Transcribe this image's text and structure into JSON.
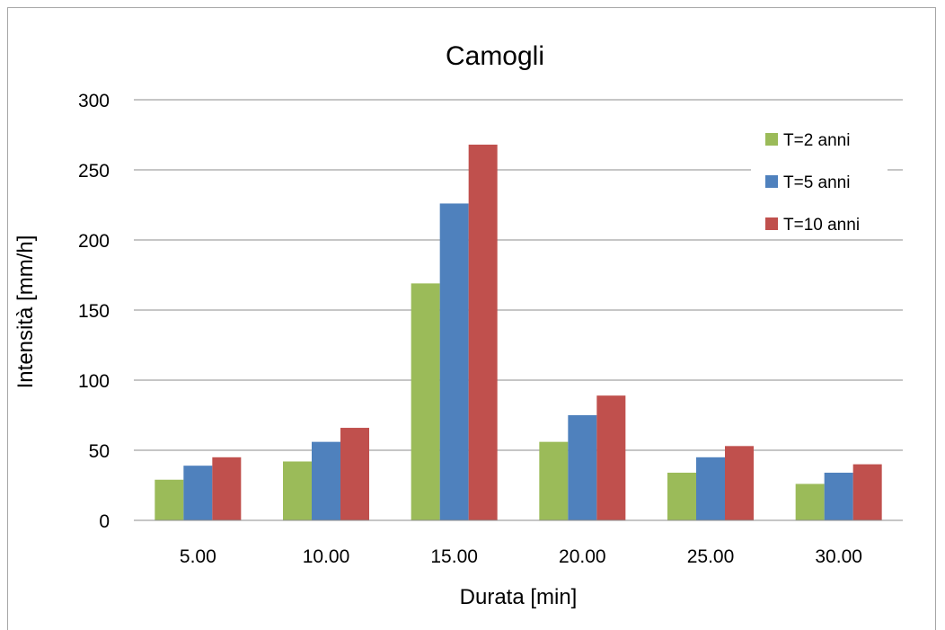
{
  "chart_data": {
    "type": "bar",
    "title": "Camogli",
    "xlabel": "Durata [min]",
    "ylabel": "Intensità [mm/h]",
    "categories": [
      "5.00",
      "10.00",
      "15.00",
      "20.00",
      "25.00",
      "30.00"
    ],
    "series": [
      {
        "name": "T=2 anni",
        "color": "#9bbb59",
        "values": [
          29,
          42,
          169,
          56,
          34,
          26
        ]
      },
      {
        "name": "T=5 anni",
        "color": "#4f81bd",
        "values": [
          39,
          56,
          226,
          75,
          45,
          34
        ]
      },
      {
        "name": "T=10 anni",
        "color": "#c0504d",
        "values": [
          45,
          66,
          268,
          89,
          53,
          40
        ]
      }
    ],
    "ylim": [
      0,
      300
    ],
    "yticks": [
      0,
      50,
      100,
      150,
      200,
      250,
      300
    ],
    "grid": true,
    "legend_position": "top-right"
  }
}
